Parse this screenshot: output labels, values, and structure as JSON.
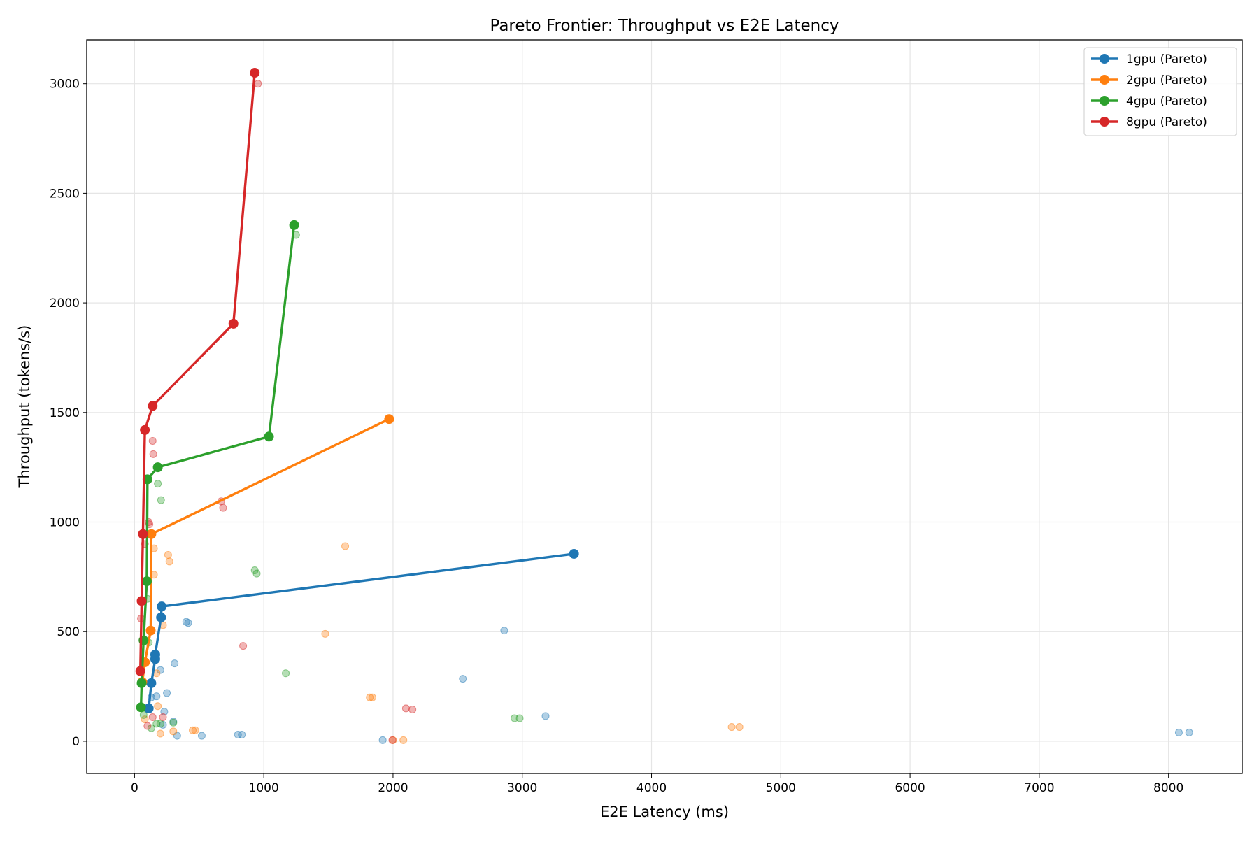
{
  "chart_data": {
    "type": "scatter",
    "title": "Pareto Frontier: Throughput vs E2E Latency",
    "xlabel": "E2E Latency (ms)",
    "ylabel": "Throughput (tokens/s)",
    "xlim": [
      -370,
      8570
    ],
    "ylim": [
      -147,
      3200
    ],
    "xticks": [
      0,
      1000,
      2000,
      3000,
      4000,
      5000,
      6000,
      7000,
      8000
    ],
    "yticks": [
      0,
      500,
      1000,
      1500,
      2000,
      2500,
      3000
    ],
    "grid": true,
    "legend_position": "top-right",
    "series": [
      {
        "name": "1gpu (Pareto)",
        "color": "#1f77b4",
        "pareto": [
          [
            110,
            150
          ],
          [
            130,
            265
          ],
          [
            160,
            375
          ],
          [
            160,
            395
          ],
          [
            205,
            565
          ],
          [
            210,
            615
          ],
          [
            3400,
            855
          ]
        ],
        "points": [
          [
            400,
            545
          ],
          [
            415,
            540
          ],
          [
            310,
            355
          ],
          [
            250,
            220
          ],
          [
            230,
            135
          ],
          [
            200,
            325
          ],
          [
            170,
            205
          ],
          [
            130,
            200
          ],
          [
            330,
            25
          ],
          [
            520,
            25
          ],
          [
            800,
            30
          ],
          [
            830,
            30
          ],
          [
            1920,
            5
          ],
          [
            2540,
            285
          ],
          [
            2860,
            505
          ],
          [
            3180,
            115
          ],
          [
            8080,
            40
          ],
          [
            8160,
            40
          ],
          [
            220,
            75
          ],
          [
            300,
            90
          ]
        ]
      },
      {
        "name": "2gpu (Pareto)",
        "color": "#ff7f0e",
        "pareto": [
          [
            60,
            270
          ],
          [
            80,
            360
          ],
          [
            125,
            505
          ],
          [
            130,
            945
          ],
          [
            1970,
            1470
          ]
        ],
        "points": [
          [
            260,
            850
          ],
          [
            270,
            820
          ],
          [
            150,
            880
          ],
          [
            150,
            760
          ],
          [
            220,
            530
          ],
          [
            1630,
            890
          ],
          [
            1475,
            490
          ],
          [
            1820,
            200
          ],
          [
            1840,
            200
          ],
          [
            4620,
            65
          ],
          [
            4680,
            65
          ],
          [
            2080,
            5
          ],
          [
            2000,
            5
          ],
          [
            450,
            50
          ],
          [
            470,
            50
          ],
          [
            300,
            45
          ],
          [
            200,
            35
          ],
          [
            180,
            160
          ],
          [
            170,
            310
          ],
          [
            80,
            100
          ]
        ]
      },
      {
        "name": "4gpu (Pareto)",
        "color": "#2ca02c",
        "pareto": [
          [
            50,
            155
          ],
          [
            55,
            265
          ],
          [
            70,
            460
          ],
          [
            95,
            730
          ],
          [
            100,
            1195
          ],
          [
            180,
            1250
          ],
          [
            1040,
            1390
          ],
          [
            1235,
            2355
          ]
        ],
        "points": [
          [
            180,
            1175
          ],
          [
            205,
            1100
          ],
          [
            930,
            780
          ],
          [
            945,
            765
          ],
          [
            1170,
            310
          ],
          [
            2940,
            105
          ],
          [
            2980,
            105
          ],
          [
            1250,
            2310
          ],
          [
            100,
            650
          ],
          [
            110,
            450
          ],
          [
            200,
            80
          ],
          [
            300,
            85
          ],
          [
            130,
            60
          ],
          [
            70,
            120
          ],
          [
            170,
            80
          ]
        ]
      },
      {
        "name": "8gpu (Pareto)",
        "color": "#d62728",
        "pareto": [
          [
            45,
            320
          ],
          [
            55,
            640
          ],
          [
            65,
            945
          ],
          [
            80,
            1420
          ],
          [
            140,
            1530
          ],
          [
            765,
            1905
          ],
          [
            930,
            3050
          ]
        ],
        "points": [
          [
            140,
            1370
          ],
          [
            145,
            1310
          ],
          [
            670,
            1095
          ],
          [
            685,
            1065
          ],
          [
            840,
            435
          ],
          [
            2100,
            150
          ],
          [
            2150,
            145
          ],
          [
            1995,
            5
          ],
          [
            955,
            3000
          ],
          [
            110,
            1000
          ],
          [
            115,
            990
          ],
          [
            100,
            70
          ],
          [
            140,
            110
          ],
          [
            220,
            110
          ],
          [
            80,
            900
          ],
          [
            50,
            560
          ]
        ]
      }
    ]
  }
}
